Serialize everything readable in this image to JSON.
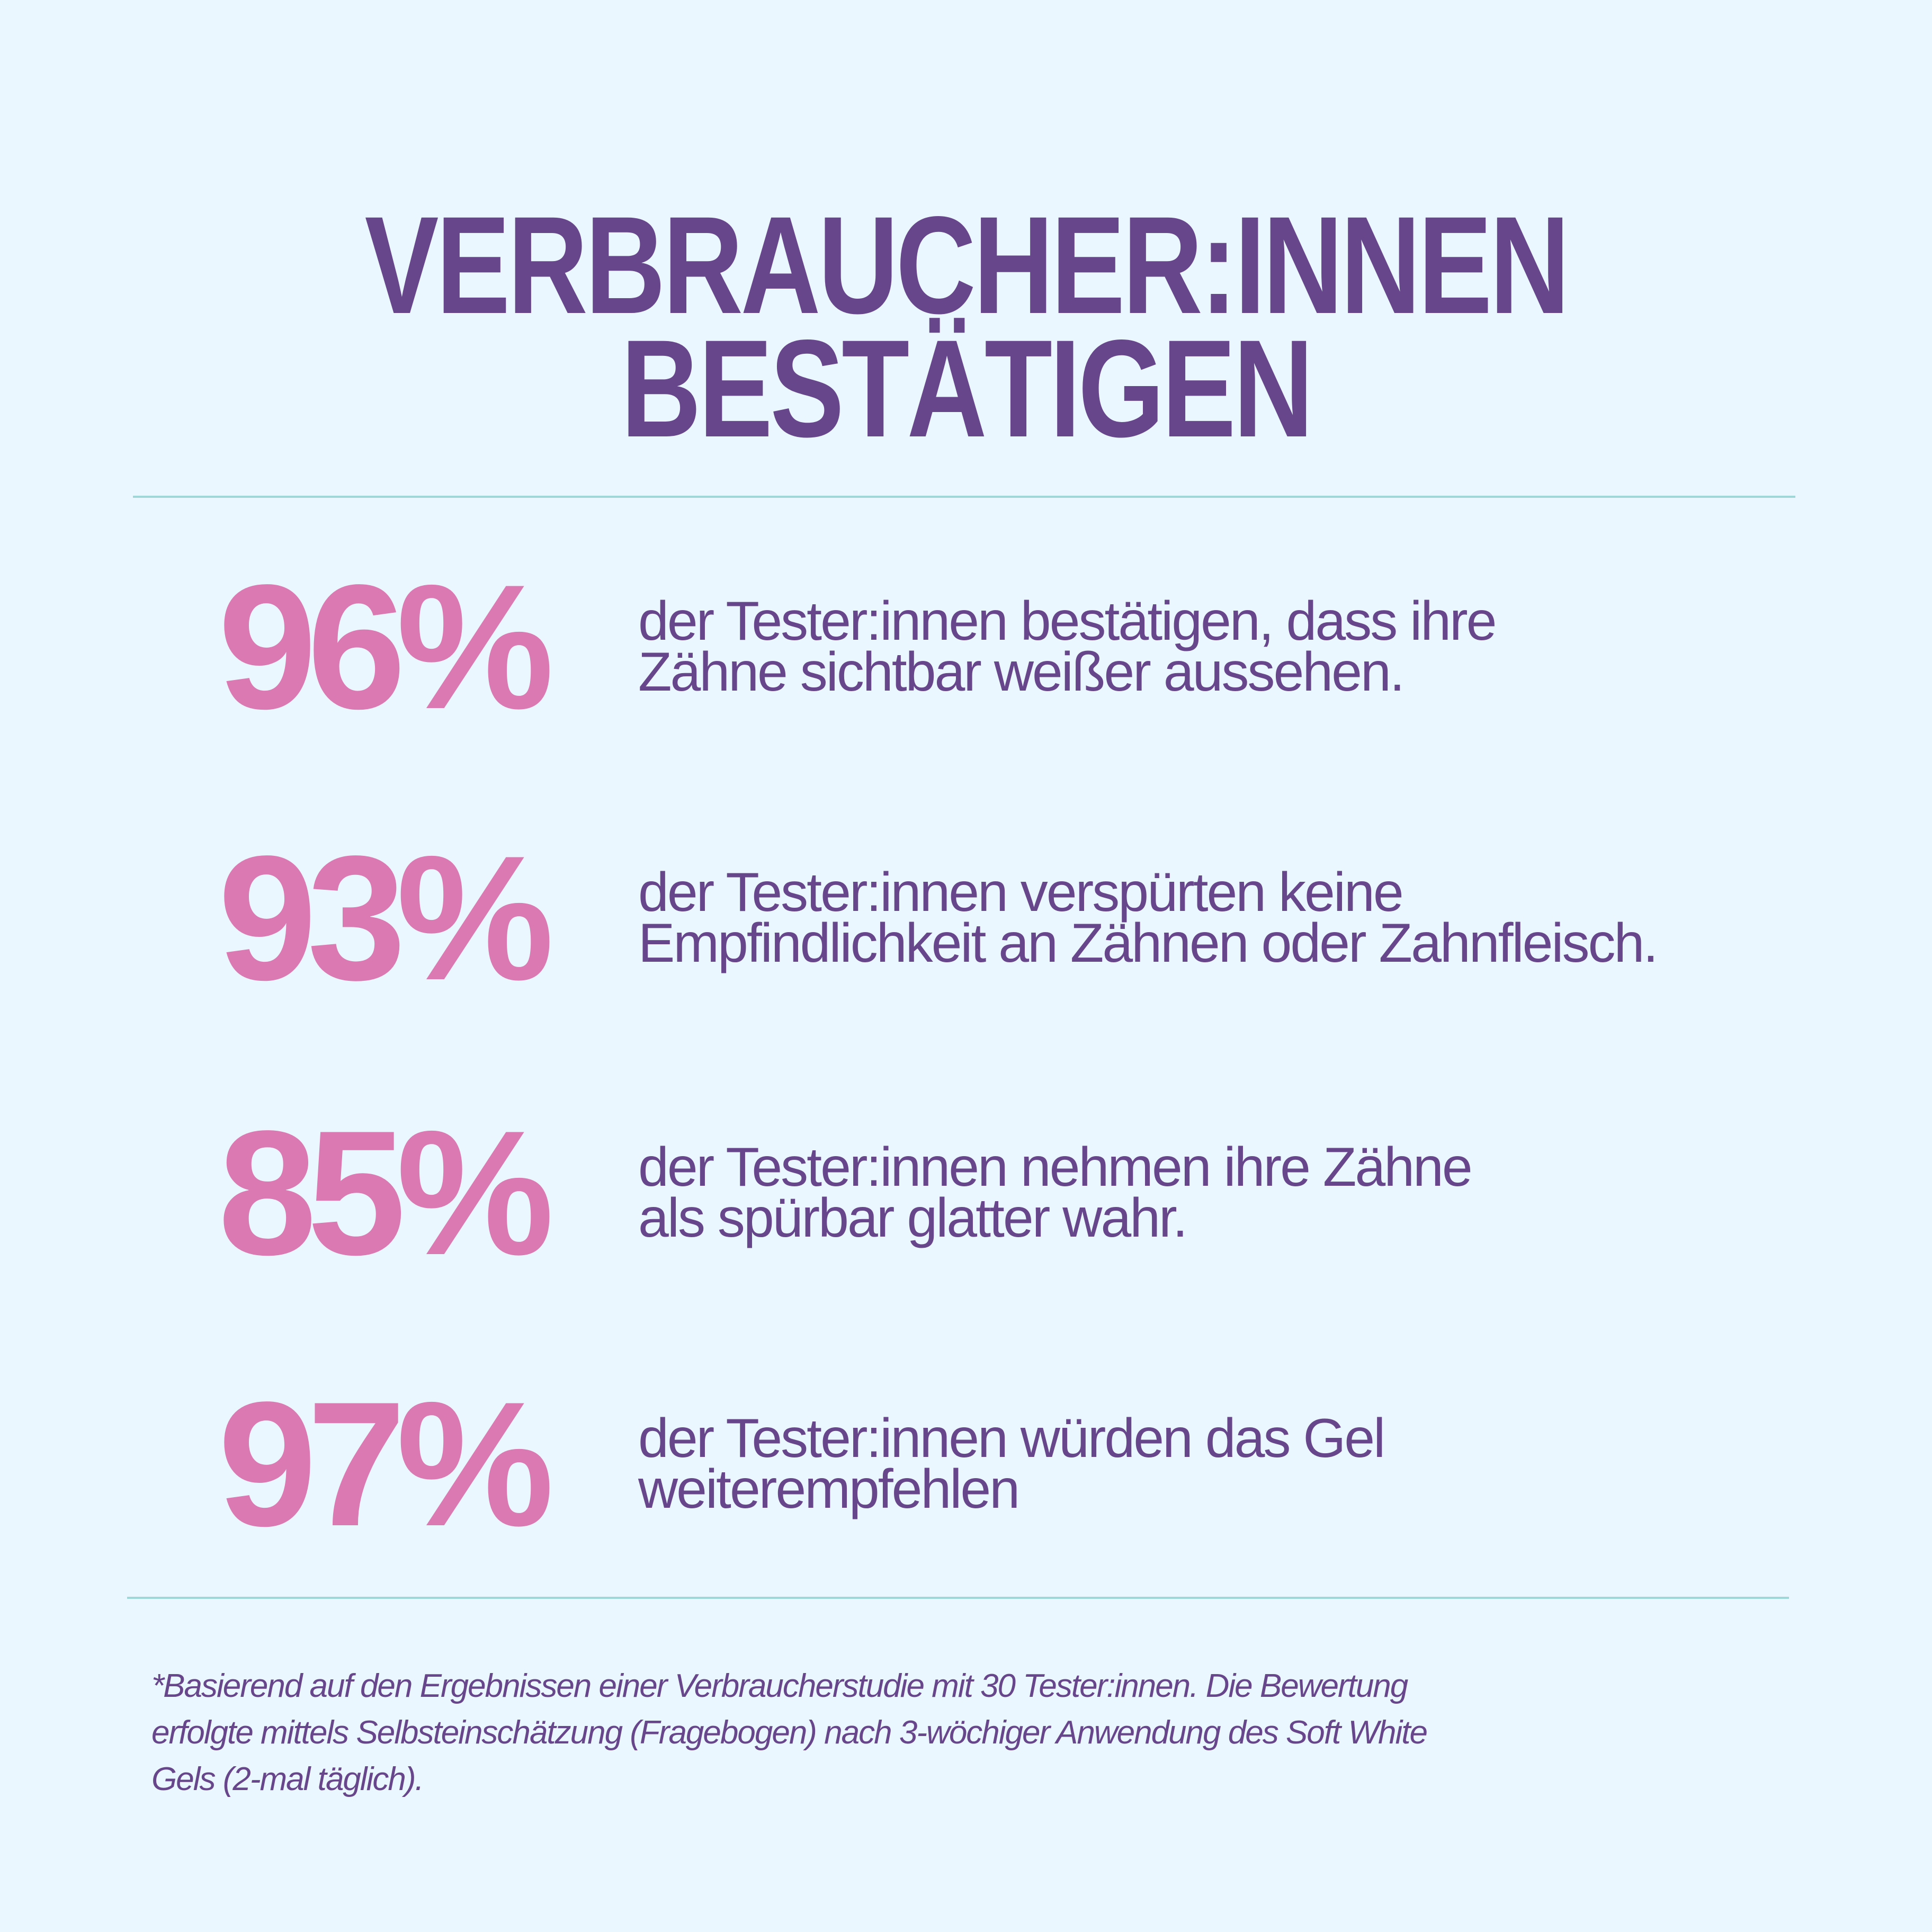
{
  "title": {
    "line1": "VERBRAUCHER:INNEN",
    "line2": "BESTÄTIGEN"
  },
  "stats": [
    {
      "percent": "96%",
      "value": 96,
      "lines": [
        "der Tester:innen bestätigen, dass ihre",
        "Zähne sichtbar weißer aussehen."
      ]
    },
    {
      "percent": "93%",
      "value": 93,
      "lines": [
        "der Tester:innen verspürten keine",
        "Empfindlichkeit an Zähnen oder Zahnfleisch."
      ]
    },
    {
      "percent": "85%",
      "value": 85,
      "lines": [
        "der Tester:innen nehmen ihre Zähne",
        "als spürbar glatter wahr."
      ]
    },
    {
      "percent": "97%",
      "value": 97,
      "lines": [
        "der Tester:innen würden das Gel",
        "weiterempfehlen"
      ]
    }
  ],
  "footnote": [
    "*Basierend auf den Ergebnissen einer Verbraucherstudie mit 30 Tester:innen. Die Bewertung",
    "erfolgte mittels Selbsteinschätzung (Fragebogen) nach 3-wöchiger Anwendung des Soft White",
    "Gels (2-mal täglich)."
  ],
  "colors": {
    "background": "#eaf7ff",
    "primary": "#67468b",
    "accent": "#db79b3",
    "divider": "#9fd6d8"
  }
}
